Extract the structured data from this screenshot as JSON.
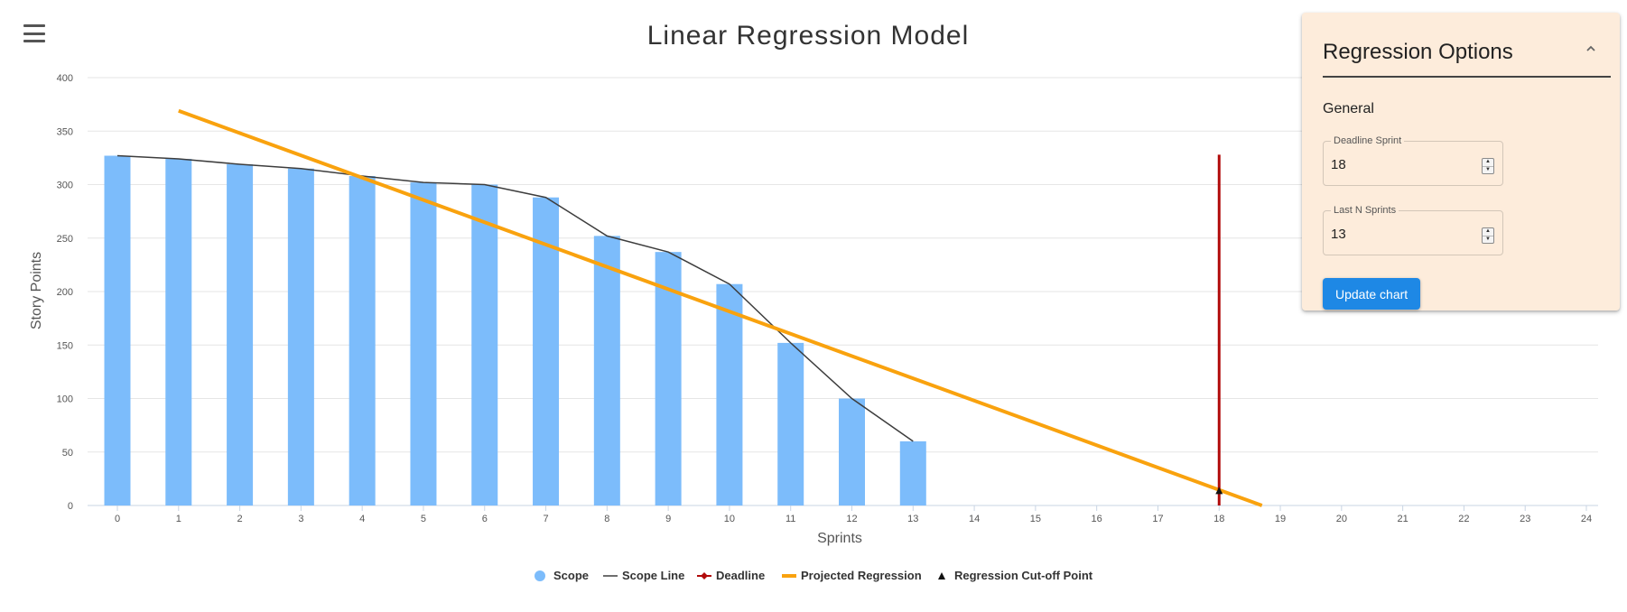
{
  "toolbar": {
    "menu_icon": "hamburger-menu-icon"
  },
  "chart_data": {
    "type": "bar",
    "title": "Linear Regression Model",
    "xlabel": "Sprints",
    "ylabel": "Story Points",
    "x_ticks": [
      0,
      1,
      2,
      3,
      4,
      5,
      6,
      7,
      8,
      9,
      10,
      11,
      12,
      13,
      14,
      15,
      16,
      17,
      18,
      19,
      20,
      21,
      22,
      23,
      24
    ],
    "y_ticks": [
      0,
      50,
      100,
      150,
      200,
      250,
      300,
      350,
      400
    ],
    "xlim": [
      0,
      24
    ],
    "ylim": [
      0,
      400
    ],
    "grid": true,
    "legend_position": "bottom",
    "series": [
      {
        "name": "Scope",
        "type": "bar",
        "color": "#7cbcfb",
        "x": [
          0,
          1,
          2,
          3,
          4,
          5,
          6,
          7,
          8,
          9,
          10,
          11,
          12,
          13
        ],
        "values": [
          327,
          324,
          319,
          315,
          308,
          302,
          300,
          288,
          252,
          237,
          207,
          152,
          100,
          60
        ]
      },
      {
        "name": "Scope Line",
        "type": "line",
        "color": "#3d3d3d",
        "x": [
          0,
          1,
          2,
          3,
          4,
          5,
          6,
          7,
          8,
          9,
          10,
          11,
          12,
          13
        ],
        "values": [
          327,
          324,
          319,
          315,
          308,
          302,
          300,
          288,
          252,
          237,
          207,
          152,
          100,
          60
        ]
      },
      {
        "name": "Deadline",
        "type": "vertical-line",
        "color": "#b10a0a",
        "x": 18,
        "range": [
          0,
          328
        ]
      },
      {
        "name": "Projected Regression",
        "type": "line",
        "color": "#f9a20e",
        "x": [
          1,
          18.7
        ],
        "values": [
          369,
          0
        ]
      },
      {
        "name": "Regression Cut-off Point",
        "type": "marker",
        "color": "#111111",
        "x": 18,
        "y": 14
      }
    ]
  },
  "options_panel": {
    "title": "Regression Options",
    "section": "General",
    "collapse_icon": "chevron-up-icon",
    "deadline_sprint": {
      "label": "Deadline Sprint",
      "value": "18"
    },
    "last_n_sprints": {
      "label": "Last N Sprints",
      "value": "13"
    },
    "update_button": "Update chart",
    "colors": {
      "background": "#fdecdb",
      "button": "#1e88e5"
    }
  }
}
